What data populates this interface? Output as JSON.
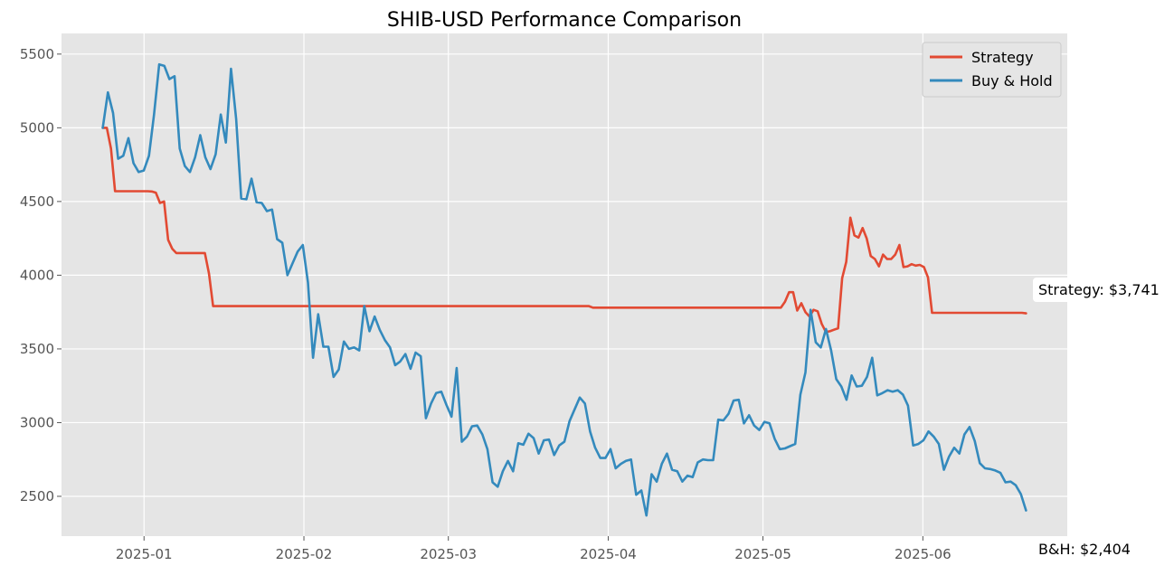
{
  "chart_data": {
    "type": "line",
    "title": "SHIB-USD Performance Comparison",
    "xlabel": "",
    "ylabel": "",
    "x_start": "2024-12-24",
    "x_end": "2025-06-21",
    "xlim": [
      "2024-12-16",
      "2025-06-29"
    ],
    "ylim": [
      2230,
      5640
    ],
    "x_ticks": [
      "2025-01",
      "2025-02",
      "2025-03",
      "2025-04",
      "2025-05",
      "2025-06"
    ],
    "y_ticks": [
      2500,
      3000,
      3500,
      4000,
      4500,
      5000,
      5500
    ],
    "grid": true,
    "legend_position": "top-right",
    "background_color": "#e5e5e5",
    "series": [
      {
        "name": "Strategy",
        "color": "#e24a33",
        "values": [
          5000,
          5000,
          4860,
          4570,
          4570,
          4570,
          4570,
          4570,
          4570,
          4570,
          4570,
          4570,
          4568,
          4560,
          4490,
          4500,
          4240,
          4180,
          4150,
          4150,
          4150,
          4150,
          4150,
          4150,
          4150,
          4150,
          4010,
          3790,
          3790,
          3790,
          3790,
          3790,
          3790,
          3790,
          3790,
          3790,
          3790,
          3790,
          3790,
          3790,
          3790,
          3790,
          3790,
          3790,
          3790,
          3790,
          3790,
          3790,
          3790,
          3790,
          3790,
          3790,
          3790,
          3790,
          3790,
          3790,
          3790,
          3790,
          3790,
          3790,
          3790,
          3790,
          3790,
          3790,
          3790,
          3790,
          3790,
          3790,
          3790,
          3790,
          3790,
          3790,
          3790,
          3790,
          3790,
          3790,
          3790,
          3790,
          3790,
          3790,
          3790,
          3790,
          3790,
          3790,
          3790,
          3790,
          3790,
          3790,
          3790,
          3790,
          3790,
          3790,
          3790,
          3790,
          3790,
          3790,
          3790,
          3790,
          3790,
          3790,
          3790,
          3790,
          3790,
          3790,
          3790,
          3790,
          3790,
          3790,
          3790,
          3790,
          3790,
          3790,
          3790,
          3790,
          3790,
          3790,
          3790,
          3790,
          3790,
          3790,
          3780,
          3780,
          3780,
          3780,
          3780,
          3780,
          3780,
          3780,
          3780,
          3780,
          3780,
          3780,
          3780,
          3780,
          3780,
          3780,
          3780,
          3780,
          3780,
          3780,
          3780,
          3780,
          3780,
          3780,
          3780,
          3780,
          3780,
          3780,
          3780,
          3780,
          3780,
          3780,
          3780,
          3780,
          3780,
          3780,
          3780,
          3780,
          3780,
          3780,
          3780,
          3780,
          3780,
          3780,
          3780,
          3780,
          3780,
          3820,
          3885,
          3885,
          3760,
          3810,
          3750,
          3720,
          3765,
          3755,
          3670,
          3615,
          3620,
          3630,
          3640,
          3980,
          4090,
          4390,
          4270,
          4255,
          4320,
          4250,
          4130,
          4110,
          4060,
          4140,
          4110,
          4110,
          4140,
          4205,
          4055,
          4060,
          4075,
          4065,
          4070,
          4055,
          3985,
          3745,
          3745,
          3745,
          3745,
          3745,
          3745,
          3745,
          3745,
          3745,
          3745,
          3745,
          3745,
          3745,
          3745,
          3745,
          3745,
          3745,
          3745,
          3745,
          3745,
          3745,
          3745,
          3745,
          3741
        ]
      },
      {
        "name": "Buy & Hold",
        "color": "#348abd",
        "values": [
          5000,
          5240,
          5100,
          4790,
          4810,
          4930,
          4760,
          4700,
          4710,
          4810,
          5090,
          5430,
          5420,
          5330,
          5350,
          4860,
          4740,
          4700,
          4800,
          4950,
          4800,
          4720,
          4820,
          5090,
          4900,
          5400,
          5060,
          4520,
          4515,
          4655,
          4495,
          4490,
          4435,
          4445,
          4245,
          4220,
          4000,
          4080,
          4160,
          4205,
          3950,
          3440,
          3735,
          3515,
          3515,
          3310,
          3360,
          3550,
          3500,
          3510,
          3490,
          3790,
          3620,
          3720,
          3630,
          3560,
          3510,
          3390,
          3415,
          3465,
          3365,
          3475,
          3450,
          3030,
          3130,
          3200,
          3210,
          3120,
          3040,
          3370,
          2870,
          2905,
          2975,
          2980,
          2920,
          2820,
          2595,
          2565,
          2670,
          2740,
          2670,
          2860,
          2850,
          2925,
          2895,
          2790,
          2880,
          2885,
          2780,
          2845,
          2870,
          3010,
          3090,
          3170,
          3130,
          2940,
          2830,
          2760,
          2760,
          2820,
          2690,
          2720,
          2740,
          2750,
          2510,
          2540,
          2370,
          2650,
          2600,
          2720,
          2790,
          2680,
          2670,
          2600,
          2640,
          2630,
          2730,
          2750,
          2745,
          2745,
          3020,
          3015,
          3060,
          3150,
          3155,
          2995,
          3050,
          2980,
          2950,
          3005,
          2995,
          2890,
          2820,
          2825,
          2840,
          2855,
          3190,
          3340,
          3765,
          3545,
          3510,
          3635,
          3490,
          3295,
          3245,
          3155,
          3320,
          3245,
          3250,
          3310,
          3440,
          3185,
          3200,
          3220,
          3210,
          3220,
          3190,
          3115,
          2845,
          2855,
          2880,
          2940,
          2905,
          2855,
          2680,
          2770,
          2830,
          2790,
          2920,
          2970,
          2875,
          2725,
          2690,
          2685,
          2675,
          2660,
          2595,
          2600,
          2575,
          2515,
          2404
        ]
      }
    ],
    "annotations": [
      {
        "series": "Strategy",
        "text": "Strategy: $3,741",
        "value": 3741
      },
      {
        "series": "Buy & Hold",
        "text": "B&H: $2,404",
        "value": 2404
      }
    ]
  }
}
